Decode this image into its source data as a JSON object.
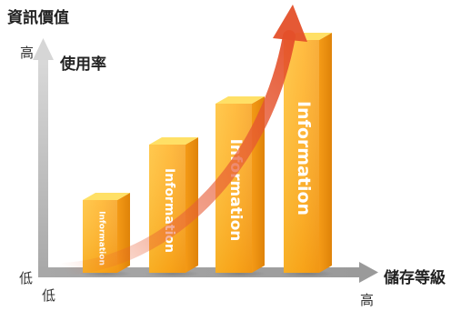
{
  "axes": {
    "y_title": "資訊價值",
    "y_high": "高",
    "y_metric": "使用率",
    "origin_y_low": "低",
    "origin_x_low": "低",
    "x_title": "儲存等級",
    "x_high": "高"
  },
  "bars": [
    {
      "label": "Information",
      "level": 1
    },
    {
      "label": "Information",
      "level": 2
    },
    {
      "label": "Information",
      "level": 3
    },
    {
      "label": "Information",
      "level": 4
    }
  ],
  "colors": {
    "bar_front_top": "#ffc640",
    "bar_front_bottom": "#f39a12",
    "bar_side": "#e8890d",
    "bar_top": "#ffe066",
    "axis": "#b5b5b5",
    "trend_arrow": "#e85a2a"
  },
  "icons": {
    "trend": "rising-curved-arrow-icon",
    "axis": "axis-arrow-icon"
  }
}
